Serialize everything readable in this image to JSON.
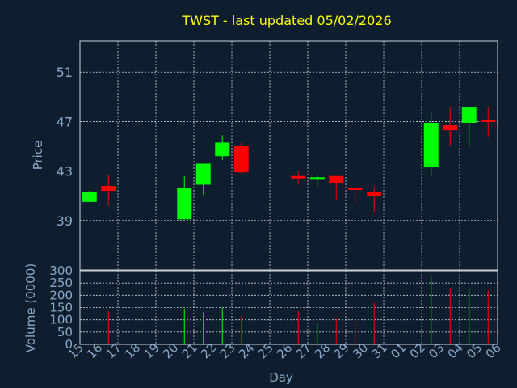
{
  "chart_data": {
    "type": "candlestick",
    "title": "TWST - last updated 05/02/2026",
    "xlabel": "Day",
    "price_panel": {
      "ylabel": "Price",
      "ylim": [
        35,
        53.5
      ],
      "yticks": [
        "39",
        "43",
        "47",
        "51"
      ],
      "grid": true
    },
    "volume_panel": {
      "ylabel": "Volume (0000)",
      "ylim": [
        0,
        300
      ],
      "yticks": [
        "0",
        "50",
        "100",
        "150",
        "200",
        "250",
        "300"
      ],
      "grid": true
    },
    "x_tick_labels": [
      "15",
      "16",
      "17",
      "18",
      "19",
      "20",
      "21",
      "22",
      "23",
      "24",
      "25",
      "26",
      "27",
      "28",
      "29",
      "30",
      "31",
      "01",
      "02",
      "03",
      "04",
      "05",
      "06"
    ],
    "candles": [
      {
        "day": "15",
        "open": 40.5,
        "high": 41.4,
        "low": 40.5,
        "close": 41.3,
        "volume": 0
      },
      {
        "day": "16",
        "open": 41.8,
        "high": 42.7,
        "low": 40.2,
        "close": 41.4,
        "volume": 135
      },
      {
        "day": "20",
        "open": 39.1,
        "high": 42.6,
        "low": 39.1,
        "close": 41.6,
        "volume": 145
      },
      {
        "day": "21",
        "open": 41.9,
        "high": 43.6,
        "low": 41.1,
        "close": 43.6,
        "volume": 130
      },
      {
        "day": "22",
        "open": 44.2,
        "high": 45.9,
        "low": 43.9,
        "close": 45.3,
        "volume": 150
      },
      {
        "day": "23",
        "open": 45.0,
        "high": 45.3,
        "low": 42.8,
        "close": 42.9,
        "volume": 115
      },
      {
        "day": "26",
        "open": 42.6,
        "high": 43.0,
        "low": 41.9,
        "close": 42.4,
        "volume": 135
      },
      {
        "day": "27",
        "open": 42.3,
        "high": 42.7,
        "low": 41.8,
        "close": 42.5,
        "volume": 90
      },
      {
        "day": "28",
        "open": 42.6,
        "high": 42.6,
        "low": 40.6,
        "close": 42.0,
        "volume": 105
      },
      {
        "day": "29",
        "open": 41.6,
        "high": 41.6,
        "low": 40.4,
        "close": 41.5,
        "volume": 95
      },
      {
        "day": "30",
        "open": 41.3,
        "high": 41.7,
        "low": 39.7,
        "close": 41.0,
        "volume": 170
      },
      {
        "day": "02",
        "open": 43.3,
        "high": 47.7,
        "low": 42.6,
        "close": 46.9,
        "volume": 275
      },
      {
        "day": "03",
        "open": 46.7,
        "high": 48.2,
        "low": 45.0,
        "close": 46.3,
        "volume": 230
      },
      {
        "day": "04",
        "open": 46.9,
        "high": 48.2,
        "low": 45.0,
        "close": 48.2,
        "volume": 225
      },
      {
        "day": "05",
        "open": 47.1,
        "high": 48.2,
        "low": 45.8,
        "close": 47.0,
        "volume": 220
      }
    ],
    "colors": {
      "background": "#0f1e2e",
      "up": "#00ff00",
      "down": "#ff0000",
      "grid": "#c8d2dc",
      "axis_text": "#8aa8c8",
      "title": "#ffff00"
    }
  }
}
